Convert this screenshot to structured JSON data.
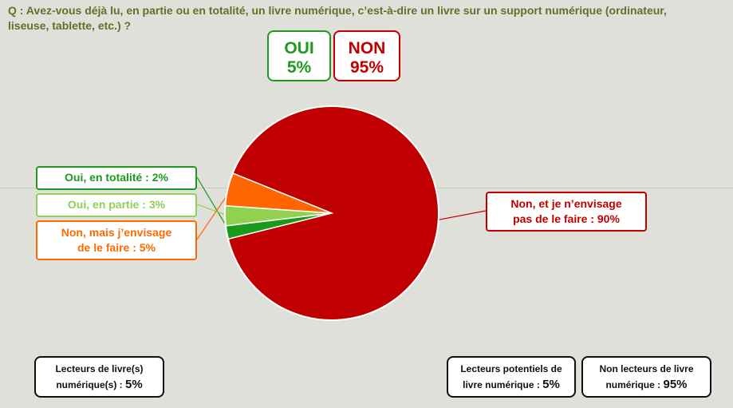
{
  "question": "Q : Avez-vous déjà lu, en partie ou en totalité, un livre numérique, c’est-à-dire un livre sur un support numérique (ordinateur, liseuse, tablette, etc.) ?",
  "summary": {
    "oui": {
      "label": "OUI",
      "value": "5%",
      "color": "#1e9a1e"
    },
    "non": {
      "label": "NON",
      "value": "95%",
      "color": "#c00000"
    }
  },
  "labels": {
    "totalite": "Oui, en totalité : 2%",
    "partie": "Oui, en partie : 3%",
    "envisage_1": "Non, mais j’envisage",
    "envisage_2": "de le faire : 5%",
    "non_envisage_1": "Non, et je n’envisage",
    "non_envisage_2": "pas de le faire : 90%"
  },
  "bottom": {
    "lecteurs": {
      "line1": "Lecteurs de livre(s)",
      "line2": "numérique(s) :",
      "value": "5%"
    },
    "potentiels": {
      "line1": "Lecteurs potentiels de",
      "line2": "livre numérique :",
      "value": "5%"
    },
    "non_lecteurs": {
      "line1": "Non lecteurs de livre",
      "line2": "numérique :",
      "value": "95%"
    }
  },
  "chart_data": {
    "type": "pie",
    "categories": [
      "Oui, en totalité",
      "Oui, en partie",
      "Non, mais j’envisage de le faire",
      "Non, et je n’envisage pas de le faire"
    ],
    "values": [
      2,
      3,
      5,
      90
    ],
    "colors": [
      "#1a9a1a",
      "#92d050",
      "#ff6600",
      "#c00000"
    ],
    "title": ""
  }
}
